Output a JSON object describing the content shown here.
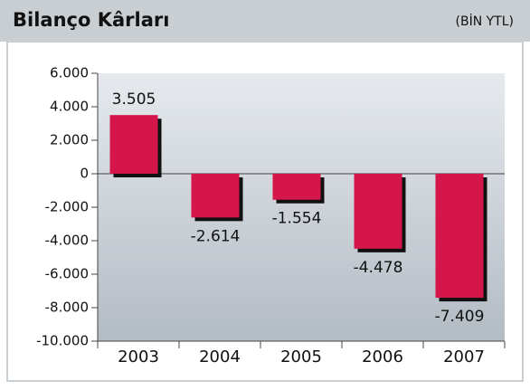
{
  "chart_data": {
    "type": "bar",
    "title": "Bilanço Kârları",
    "subtitle": "(BİN YTL)",
    "categories": [
      "2003",
      "2004",
      "2005",
      "2006",
      "2007"
    ],
    "values": [
      3505,
      -2614,
      -1554,
      -4478,
      -7409
    ],
    "value_labels": [
      "3.505",
      "-2.614",
      "-1.554",
      "-4.478",
      "-7.409"
    ],
    "color": "#d5164b",
    "ylim": [
      -10000,
      6000
    ],
    "yticks": [
      {
        "value": 6000,
        "label": "6.000"
      },
      {
        "value": 4000,
        "label": "4.000"
      },
      {
        "value": 2000,
        "label": "2.000"
      },
      0,
      {
        "value": -2000,
        "label": "-2.000"
      },
      {
        "value": -4000,
        "label": "-4.000"
      },
      {
        "value": -6000,
        "label": "-6.000"
      },
      {
        "value": -8000,
        "label": "-8.000"
      },
      {
        "value": -10000,
        "label": "-10.000"
      }
    ]
  }
}
